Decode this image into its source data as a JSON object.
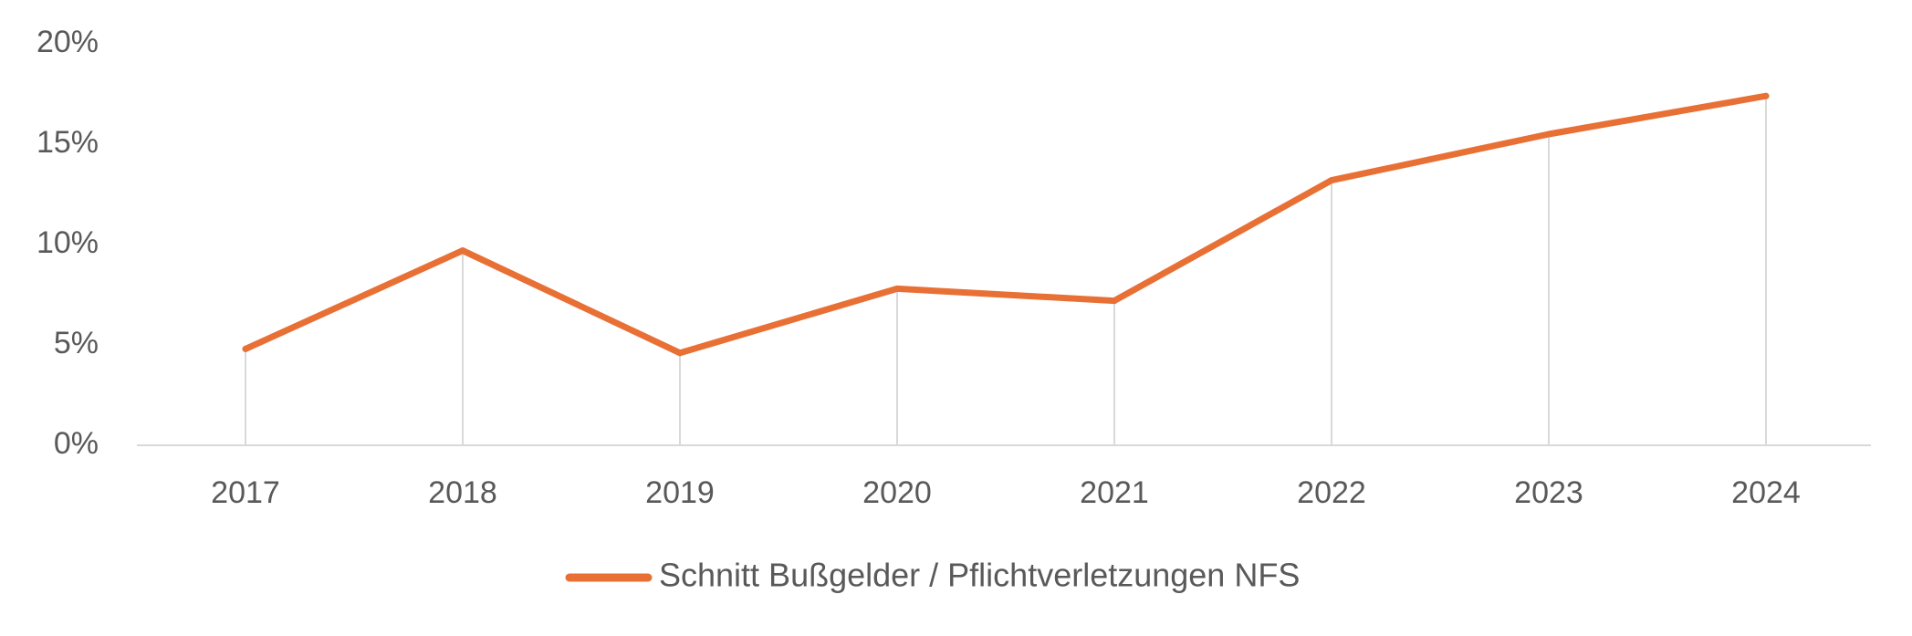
{
  "chart_data": {
    "type": "line",
    "categories": [
      "2017",
      "2018",
      "2019",
      "2020",
      "2021",
      "2022",
      "2023",
      "2024"
    ],
    "series": [
      {
        "name": "Schnitt Bußgelder / Pflichtverletzungen NFS",
        "values": [
          4.8,
          9.7,
          4.6,
          7.8,
          7.2,
          13.2,
          15.5,
          17.4
        ],
        "color": "#E87035"
      }
    ],
    "y_ticks": [
      0,
      5,
      10,
      15,
      20
    ],
    "y_tick_suffix": "%",
    "ylim": [
      0,
      20
    ],
    "xlabel": "",
    "ylabel": "",
    "title": "",
    "drop_lines": true,
    "grid": false,
    "legend_position": "bottom"
  }
}
